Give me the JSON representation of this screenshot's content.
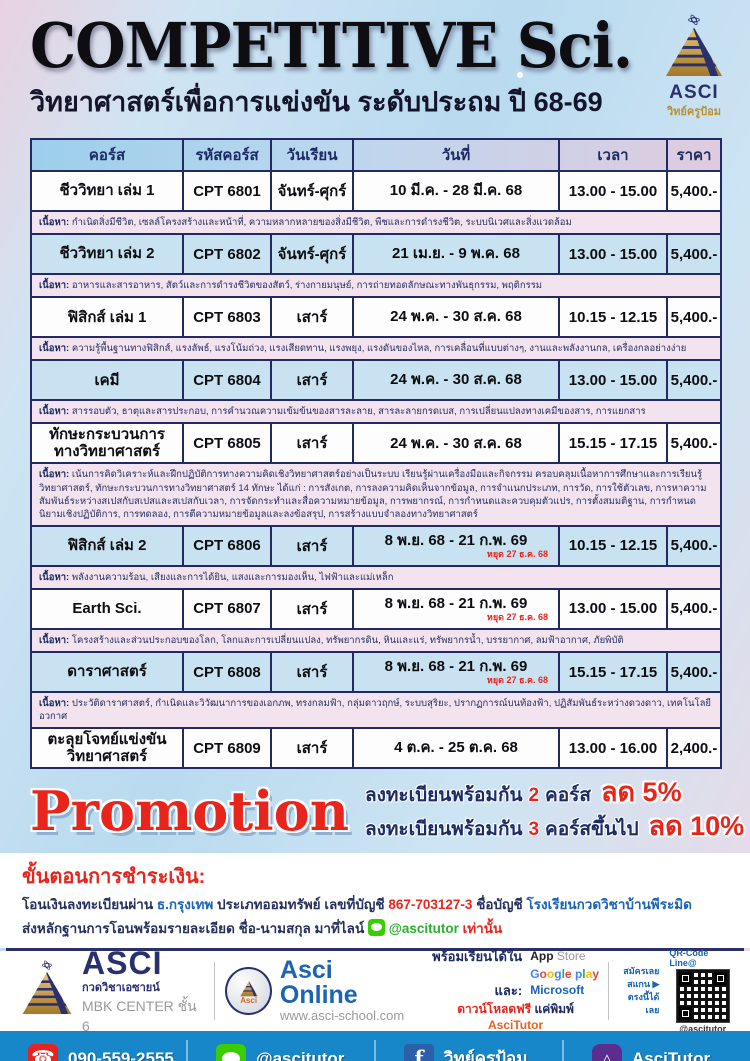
{
  "header": {
    "title": "COMPETITIVE Sci.",
    "subtitle": "วิทยาศาสตร์เพื่อการแข่งขัน ระดับประถม ปี 68-69",
    "logo": {
      "name": "ASCI",
      "caption": "วิทย์ครูป้อม"
    }
  },
  "table": {
    "headers": [
      "คอร์ส",
      "รหัสคอร์ส",
      "วันเรียน",
      "วันที่",
      "เวลา",
      "ราคา"
    ],
    "content_label": "เนื้อหา:",
    "courses": [
      {
        "name": "ชีววิทยา เล่ม 1",
        "code": "CPT 6801",
        "day": "จันทร์-ศุกร์",
        "date": "10 มี.ค. - 28 มี.ค. 68",
        "time": "13.00 - 15.00",
        "price": "5,400.-",
        "topics": "กำเนิดสิ่งมีชีวิต, เซลล์โครงสร้างและหน้าที่, ความหลากหลายของสิ่งมีชีวิต, พืชและการดำรงชีวิต, ระบบนิเวศและสิ่งแวดล้อม"
      },
      {
        "name": "ชีววิทยา เล่ม 2",
        "code": "CPT 6802",
        "day": "จันทร์-ศุกร์",
        "date": "21 เม.ย. - 9 พ.ค. 68",
        "time": "13.00 - 15.00",
        "price": "5,400.-",
        "topics": "อาหารและสารอาหาร, สัตว์และการดำรงชีวิตของสัตว์, ร่างกายมนุษย์, การถ่ายทอดลักษณะทางพันธุกรรม, พฤติกรรม"
      },
      {
        "name": "ฟิสิกส์ เล่ม 1",
        "code": "CPT 6803",
        "day": "เสาร์",
        "date": "24 พ.ค. - 30 ส.ค. 68",
        "time": "10.15 - 12.15",
        "price": "5,400.-",
        "topics": "ความรู้พื้นฐานทางฟิสิกส์, แรงลัพธ์, แรงโน้มถ่วง, แรงเสียดทาน, แรงพยุง, แรงดันของไหล, การเคลื่อนที่แบบต่างๆ, งานและพลังงานกล, เครื่องกลอย่างง่าย"
      },
      {
        "name": "เคมี",
        "code": "CPT 6804",
        "day": "เสาร์",
        "date": "24 พ.ค. - 30 ส.ค. 68",
        "time": "13.00 - 15.00",
        "price": "5,400.-",
        "topics": "สารรอบตัว, ธาตุและสารประกอบ, การคำนวณความเข้มข้นของสารละลาย, สารละลายกรดเบส, การเปลี่ยนแปลงทางเคมีของสาร, การแยกสาร"
      },
      {
        "name": "ทักษะกระบวนการ ทางวิทยาศาสตร์",
        "code": "CPT 6805",
        "day": "เสาร์",
        "date": "24 พ.ค. - 30 ส.ค. 68",
        "time": "15.15 - 17.15",
        "price": "5,400.-",
        "topics": "เน้นการคิดวิเคราะห์และฝึกปฏิบัติการทางความคิดเชิงวิทยาศาสตร์อย่างเป็นระบบ เรียนรู้ผ่านเครื่องมือและกิจกรรม ครอบคลุมเนื้อหาการศึกษาและการเรียนรู้วิทยาศาสตร์, ทักษะกระบวนการทางวิทยาศาสตร์ 14 ทักษะ ได้แก่ : การสังเกต, การลงความคิดเห็นจากข้อมูล, การจำแนกประเภท, การวัด, การใช้ตัวเลข, การหาความสัมพันธ์ระหว่างสเปสกับสเปสและสเปสกับเวลา, การจัดกระทำและสื่อความหมายข้อมูล, การพยากรณ์, การกำหนดและควบคุมตัวแปร, การตั้งสมมติฐาน, การกำหนดนิยามเชิงปฏิบัติการ, การทดลอง, การตีความหมายข้อมูลและลงข้อสรุป, การสร้างแบบจำลองทางวิทยาศาสตร์"
      },
      {
        "name": "ฟิสิกส์ เล่ม 2",
        "code": "CPT 6806",
        "day": "เสาร์",
        "date": "8 พ.ย. 68 - 21 ก.พ. 69",
        "date_note": "หยุด 27 ธ.ค. 68",
        "time": "10.15 - 12.15",
        "price": "5,400.-",
        "topics": "พลังงานความร้อน, เสียงและการได้ยิน, แสงและการมองเห็น, ไฟฟ้าและแม่เหล็ก"
      },
      {
        "name": "Earth Sci.",
        "code": "CPT 6807",
        "day": "เสาร์",
        "date": "8 พ.ย. 68 - 21 ก.พ. 69",
        "date_note": "หยุด 27 ธ.ค. 68",
        "time": "13.00 - 15.00",
        "price": "5,400.-",
        "topics": "โครงสร้างและส่วนประกอบของโลก, โลกและการเปลี่ยนแปลง, ทรัพยากรดิน, หินและแร่, ทรัพยากรน้ำ, บรรยากาศ, ลมฟ้าอากาศ, ภัยพิบัติ"
      },
      {
        "name": "ดาราศาสตร์",
        "code": "CPT 6808",
        "day": "เสาร์",
        "date": "8 พ.ย. 68 - 21 ก.พ. 69",
        "date_note": "หยุด 27 ธ.ค. 68",
        "time": "15.15 - 17.15",
        "price": "5,400.-",
        "topics": "ประวัติดาราศาสตร์, กำเนิดและวิวัฒนาการของเอกภพ, ทรงกลมฟ้า, กลุ่มดาวฤกษ์, ระบบสุริยะ, ปรากฏการณ์บนท้องฟ้า, ปฏิสัมพันธ์ระหว่างดวงดาว, เทคโนโลยีอวกาศ"
      },
      {
        "name": "ตะลุยโจทย์แข่งขัน วิทยาศาสตร์",
        "code": "CPT 6809",
        "day": "เสาร์",
        "date": "4 ต.ค. - 25 ต.ค. 68",
        "time": "13.00 - 16.00",
        "price": "2,400.-"
      }
    ]
  },
  "promotion": {
    "title": "Promotion",
    "lines": [
      {
        "prefix": "ลงทะเบียนพร้อมกัน",
        "count": "2",
        "suffix": "คอร์ส",
        "discount": "ลด 5%"
      },
      {
        "prefix": "ลงทะเบียนพร้อมกัน",
        "count": "3",
        "suffix": "คอร์สขึ้นไป",
        "discount": "ลด 10%"
      }
    ]
  },
  "payment": {
    "heading": "ขั้นตอนการชำระเงิน:",
    "l1a": "โอนเงินลงทะเบียนผ่าน",
    "bank": "ธ.กรุงเทพ",
    "l1b": "ประเภทออมทรัพย์ เลขที่บัญชี",
    "account": "867-703127-3",
    "l1c": "ชื่อบัญชี",
    "account_name": "โรงเรียนกวดวิชาบ้านพีระมิด",
    "l2a": "ส่งหลักฐานการโอนพร้อมรายละเอียด ชื่อ-นามสกุล มาที่ไลน์",
    "line_id": "@ascitutor",
    "l2b": "เท่านั้น"
  },
  "footer": {
    "asci": {
      "name": "ASCI",
      "sub1": "กวดวิชาเอซายน์",
      "sub2": "MBK CENTER ชั้น 6"
    },
    "online": {
      "badge": "Asci",
      "name": "Asci Online",
      "url": "www.asci-school.com"
    },
    "apps": {
      "lead": "พร้อมเรียนได้ใน",
      "store1": "App",
      "store2": "Store",
      "google": "Google play",
      "and": "และ:",
      "microsoft": "Microsoft",
      "dl1": "ดาวน์โหลดฟรี",
      "dl2": "แค่พิมพ์",
      "dl3": "AsciTutor"
    },
    "qr": {
      "title": "QR-Code Line@",
      "side1": "สมัครเลย",
      "side2": "สแกน ▶",
      "side3": "ตรงนี้ได้เลย",
      "caption": "@ascitutor"
    }
  },
  "contact_bar": {
    "phone": "090-559-2555",
    "line": "@ascitutor",
    "facebook": "วิทย์ครูป้อม",
    "app": "AsciTutor"
  },
  "icons": {
    "phone": "☎",
    "facebook": "f",
    "line": "chat-bubble",
    "app": "pyramid-triangle",
    "logo": "gold-pyramid-with-atom"
  },
  "colors": {
    "red": "#e8251d",
    "navy": "#1c2b63",
    "blue_row": "#c9e2f1",
    "pink_row": "#f2e3ee",
    "bar_blue": "#1887c9",
    "link_blue": "#1a63b5",
    "line_green": "#3ace01",
    "gold": "#c89b3c",
    "google_letters": [
      "#4285F4",
      "#EA4335",
      "#FBBC05",
      "#4285F4",
      "#34A853",
      "#EA4335",
      null,
      "#4285F4",
      "#34A853",
      "#FBBC05",
      "#EA4335"
    ]
  }
}
